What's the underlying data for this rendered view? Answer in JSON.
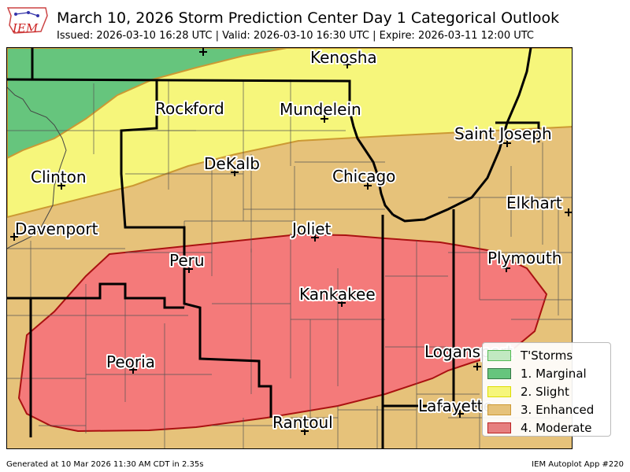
{
  "header": {
    "title": "March 10, 2026 Storm Prediction Center Day 1 Categorical Outlook",
    "subtitle": "Issued: 2026-03-10 16:28 UTC | Valid: 2026-03-10 16:30 UTC | Expire: 2026-03-11 12:00 UTC",
    "logo_text": "IEM"
  },
  "cities": [
    {
      "name": "Kenosha"
    },
    {
      "name": "Rockford"
    },
    {
      "name": "Mundelein"
    },
    {
      "name": "Saint Joseph"
    },
    {
      "name": "DeKalb"
    },
    {
      "name": "Chicago"
    },
    {
      "name": "Clinton"
    },
    {
      "name": "Elkhart"
    },
    {
      "name": "Davenport"
    },
    {
      "name": "Joliet"
    },
    {
      "name": "Peru"
    },
    {
      "name": "Plymouth"
    },
    {
      "name": "Kankakee"
    },
    {
      "name": "Peoria"
    },
    {
      "name": "Logansport"
    },
    {
      "name": "Lafayette"
    },
    {
      "name": "Rantoul"
    }
  ],
  "legend": [
    {
      "label": "T'Storms",
      "fill": "#c1e9c1",
      "stroke": "#55bb55"
    },
    {
      "label": "1. Marginal",
      "fill": "#66c57d",
      "stroke": "#337744"
    },
    {
      "label": "2. Slight",
      "fill": "#f6f67b",
      "stroke": "#dddd00"
    },
    {
      "label": "3. Enhanced",
      "fill": "#e6c27a",
      "stroke": "#cc9933"
    },
    {
      "label": "4. Moderate",
      "fill": "#e67f7f",
      "stroke": "#bb2222"
    }
  ],
  "footer": {
    "left": "Generated at 10 Mar 2026 11:30 AM CDT in 2.35s",
    "right": "IEM Autoplot App #220"
  }
}
